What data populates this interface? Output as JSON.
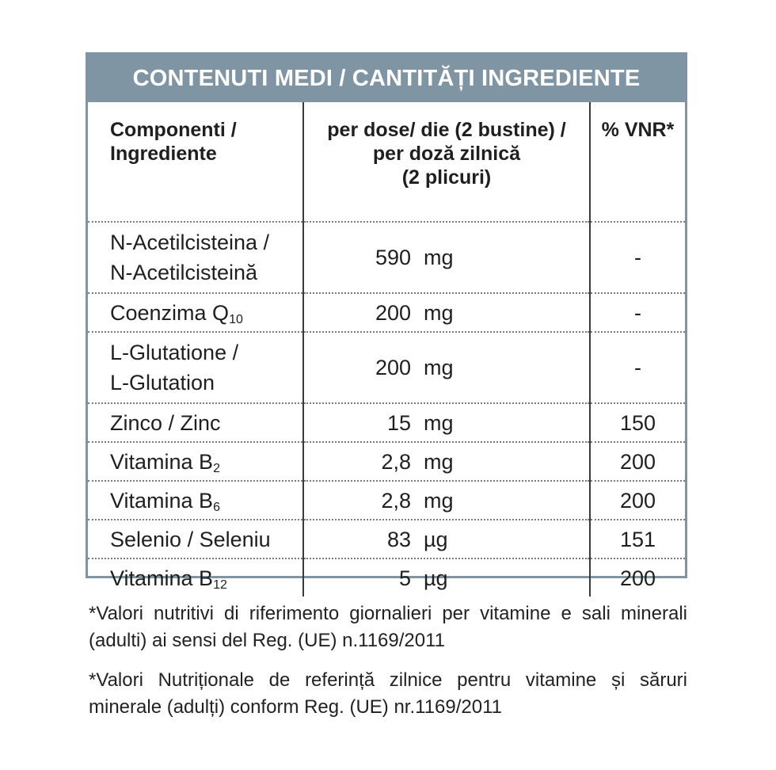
{
  "title": "CONTENUTI MEDI / CANTITĂȚI INGREDIENTE",
  "headers": {
    "col1_line1": "Componenti /",
    "col1_line2": "Ingrediente",
    "col2_line1": "per dose/ die (2 bustine) /",
    "col2_line2": "per doză zilnică",
    "col2_line3": "(2 plicuri)",
    "col3": "% VNR*"
  },
  "rows": [
    {
      "name_line1": "N-Acetilcisteina /",
      "name_line2": "N-Acetilcisteină",
      "amount": "590",
      "unit": "mg",
      "vnr": "-"
    },
    {
      "name": "Coenzima Q",
      "sub": "10",
      "amount": "200",
      "unit": "mg",
      "vnr": "-"
    },
    {
      "name_line1": "L-Glutatione /",
      "name_line2": "L-Glutation",
      "amount": "200",
      "unit": "mg",
      "vnr": "-"
    },
    {
      "name": "Zinco / Zinc",
      "amount": "15",
      "unit": "mg",
      "vnr": "150"
    },
    {
      "name": "Vitamina B",
      "sub": "2",
      "amount": "2,8",
      "unit": "mg",
      "vnr": "200"
    },
    {
      "name": "Vitamina B",
      "sub": "6",
      "amount": "2,8",
      "unit": "mg",
      "vnr": "200"
    },
    {
      "name": "Selenio / Seleniu",
      "amount": "83",
      "unit": "µg",
      "vnr": "151"
    },
    {
      "name": "Vitamina B",
      "sub": "12",
      "amount": "5",
      "unit": "µg",
      "vnr": "200"
    }
  ],
  "notes": [
    "*Valori nutritivi di riferimento giornalieri per vitamine e  sali minerali (adulti) ai sensi del Reg. (UE) n.1169/2011",
    "*Valori Nutriționale de referință  zilnice pentru vitamine și săruri minerale (adulți)  conform Reg. (UE) nr.1169/2011"
  ],
  "colors": {
    "accent": "#7f95a3"
  }
}
